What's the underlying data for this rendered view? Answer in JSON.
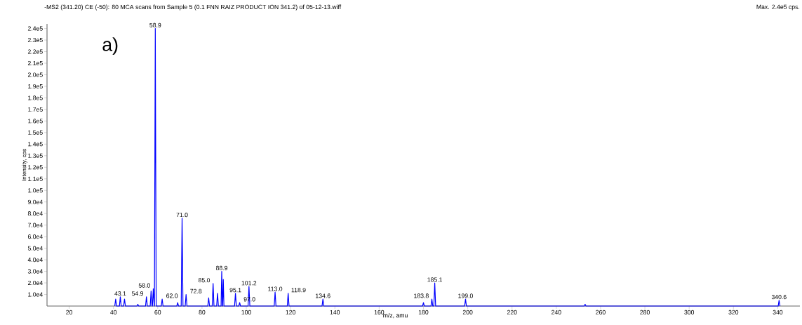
{
  "chart_data": {
    "type": "line",
    "title": "-MS2 (341.20) CE (-50): 80 MCA scans from Sample 5 (0.1 FNN RAIZ PRODUCT ION 341.2) of 05-12-13.wiff",
    "subtitle": "Max. 2.4e5 cps.",
    "xlabel": "m/z, amu",
    "ylabel": "Intensity, cps",
    "series": [
      {
        "color": "#0000ff",
        "x": [
          40.6,
          41,
          41.4,
          42.7,
          43.1,
          43.5,
          44.6,
          45,
          45.4,
          50.6,
          51,
          51.4,
          54.5,
          54.9,
          55.3,
          56.6,
          57,
          57.4,
          57.6,
          58,
          58.4,
          58.5,
          58.9,
          59.3,
          61.6,
          62,
          62.4,
          68.6,
          69,
          69.4,
          70.6,
          71,
          71.4,
          72.4,
          72.8,
          73.2,
          82.6,
          83,
          83.4,
          84.6,
          85,
          85.4,
          86.6,
          87,
          87.4,
          88.6,
          88.9,
          89.2,
          89.3,
          89.6,
          89.9,
          94.7,
          95.1,
          95.5,
          96.6,
          97,
          97.4,
          100.8,
          101.2,
          101.6,
          112.6,
          113,
          113.4,
          118.5,
          118.9,
          119.3,
          134.2,
          134.6,
          135,
          179.6,
          180,
          180.4,
          183.4,
          183.8,
          184.2,
          184.7,
          185.1,
          185.5,
          198.6,
          199,
          199.4,
          252.6,
          253,
          253.4,
          340.2,
          340.6,
          341
        ],
        "values": [
          0,
          6000,
          0,
          0,
          8000,
          0,
          0,
          6000,
          0,
          0,
          1500,
          0,
          0,
          8000,
          0,
          0,
          13000,
          0,
          0,
          15000,
          0,
          0,
          240000,
          0,
          0,
          6000,
          0,
          0,
          3000,
          0,
          0,
          76000,
          0,
          0,
          10000,
          0,
          0,
          7000,
          0,
          0,
          19500,
          0,
          0,
          11000,
          0,
          0,
          30000,
          0,
          0,
          23000,
          0,
          0,
          11000,
          0,
          0,
          3000,
          0,
          0,
          17000,
          0,
          0,
          12000,
          0,
          0,
          11000,
          0,
          0,
          6000,
          0,
          0,
          3000,
          0,
          0,
          6000,
          0,
          0,
          20000,
          0,
          0,
          6000,
          0,
          0,
          1500,
          0,
          0,
          5000,
          0
        ]
      }
    ],
    "xlim": [
      10,
      350
    ],
    "ylim": [
      0,
      244000
    ],
    "xticks": [
      20,
      40,
      60,
      80,
      100,
      120,
      140,
      160,
      180,
      200,
      220,
      240,
      260,
      280,
      300,
      320,
      340
    ],
    "yticks": [
      {
        "value": 10000,
        "label": "1.0e4"
      },
      {
        "value": 20000,
        "label": "2.0e4"
      },
      {
        "value": 30000,
        "label": "3.0e4"
      },
      {
        "value": 40000,
        "label": "4.0e4"
      },
      {
        "value": 50000,
        "label": "5.0e4"
      },
      {
        "value": 60000,
        "label": "6.0e4"
      },
      {
        "value": 70000,
        "label": "7.0e4"
      },
      {
        "value": 80000,
        "label": "8.0e4"
      },
      {
        "value": 90000,
        "label": "9.0e4"
      },
      {
        "value": 100000,
        "label": "1.0e5"
      },
      {
        "value": 110000,
        "label": "1.1e5"
      },
      {
        "value": 120000,
        "label": "1.2e5"
      },
      {
        "value": 130000,
        "label": "1.3e5"
      },
      {
        "value": 140000,
        "label": "1.4e5"
      },
      {
        "value": 150000,
        "label": "1.5e5"
      },
      {
        "value": 160000,
        "label": "1.6e5"
      },
      {
        "value": 170000,
        "label": "1.7e5"
      },
      {
        "value": 180000,
        "label": "1.8e5"
      },
      {
        "value": 190000,
        "label": "1.9e5"
      },
      {
        "value": 200000,
        "label": "2.0e5"
      },
      {
        "value": 210000,
        "label": "2.1e5"
      },
      {
        "value": 220000,
        "label": "2.2e5"
      },
      {
        "value": 230000,
        "label": "2.3e5"
      },
      {
        "value": 240000,
        "label": "2.4e5"
      }
    ],
    "annotations": [
      "a)",
      {
        "text": "43.1",
        "x": 43.1,
        "y": 8000
      },
      {
        "text": "54.9",
        "x": 54.9,
        "y": 8000
      },
      {
        "text": "58.0",
        "x": 58.0,
        "y": 15000
      },
      {
        "text": "58.9",
        "x": 58.9,
        "y": 240000
      },
      {
        "text": "62.0",
        "x": 62.0,
        "y": 6000
      },
      {
        "text": "71.0",
        "x": 71.0,
        "y": 76000
      },
      {
        "text": "72.8",
        "x": 72.8,
        "y": 10000
      },
      {
        "text": "85.0",
        "x": 85.0,
        "y": 19500
      },
      {
        "text": "88.9",
        "x": 88.9,
        "y": 30000
      },
      {
        "text": "95.1",
        "x": 95.1,
        "y": 11000
      },
      {
        "text": "97.0",
        "x": 97.0,
        "y": 3000
      },
      {
        "text": "101.2",
        "x": 101.2,
        "y": 17000
      },
      {
        "text": "113.0",
        "x": 113.0,
        "y": 12000
      },
      {
        "text": "118.9",
        "x": 118.9,
        "y": 11000
      },
      {
        "text": "134.6",
        "x": 134.6,
        "y": 6000
      },
      {
        "text": "183.8",
        "x": 183.8,
        "y": 6000
      },
      {
        "text": "185.1",
        "x": 185.1,
        "y": 20000
      },
      {
        "text": "199.0",
        "x": 199.0,
        "y": 6000
      },
      {
        "text": "340.6",
        "x": 340.6,
        "y": 5000
      }
    ]
  }
}
